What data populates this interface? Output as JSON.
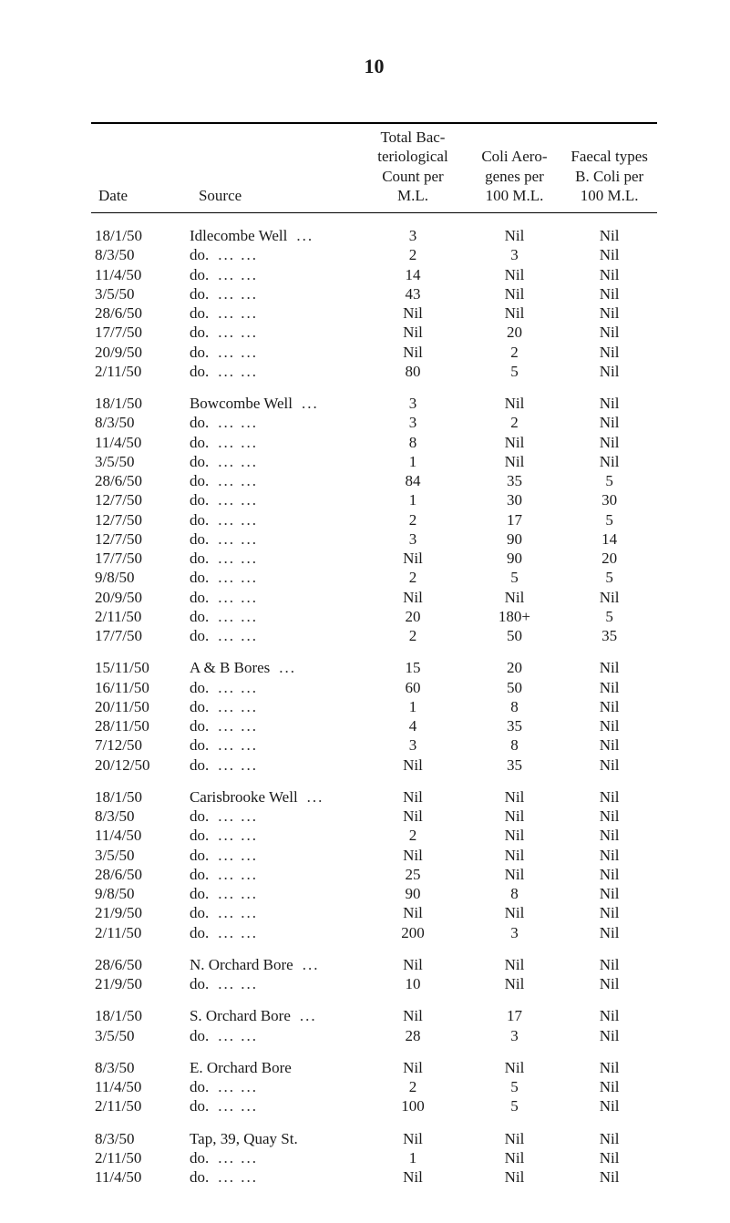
{
  "page_number": "10",
  "headers": {
    "date": "Date",
    "source": "Source",
    "total": "Total Bac-\nteriological\nCount per\nM.L.",
    "coli": "Coli Aero-\ngenes per\n100 M.L.",
    "faecal": "Faecal types\nB. Coli per\n100 M.L."
  },
  "groups": [
    {
      "rows": [
        {
          "date": "18/1/50",
          "source": "Idlecombe Well",
          "dots": 1,
          "total": "3",
          "coli": "Nil",
          "faecal": "Nil"
        },
        {
          "date": "8/3/50",
          "source": "do.",
          "dots": 2,
          "total": "2",
          "coli": "3",
          "faecal": "Nil"
        },
        {
          "date": "11/4/50",
          "source": "do.",
          "dots": 2,
          "total": "14",
          "coli": "Nil",
          "faecal": "Nil"
        },
        {
          "date": "3/5/50",
          "source": "do.",
          "dots": 2,
          "total": "43",
          "coli": "Nil",
          "faecal": "Nil"
        },
        {
          "date": "28/6/50",
          "source": "do.",
          "dots": 2,
          "total": "Nil",
          "coli": "Nil",
          "faecal": "Nil"
        },
        {
          "date": "17/7/50",
          "source": "do.",
          "dots": 2,
          "total": "Nil",
          "coli": "20",
          "faecal": "Nil"
        },
        {
          "date": "20/9/50",
          "source": "do.",
          "dots": 2,
          "total": "Nil",
          "coli": "2",
          "faecal": "Nil"
        },
        {
          "date": "2/11/50",
          "source": "do.",
          "dots": 2,
          "total": "80",
          "coli": "5",
          "faecal": "Nil"
        }
      ]
    },
    {
      "rows": [
        {
          "date": "18/1/50",
          "source": "Bowcombe Well",
          "dots": 1,
          "total": "3",
          "coli": "Nil",
          "faecal": "Nil"
        },
        {
          "date": "8/3/50",
          "source": "do.",
          "dots": 2,
          "total": "3",
          "coli": "2",
          "faecal": "Nil"
        },
        {
          "date": "11/4/50",
          "source": "do.",
          "dots": 2,
          "total": "8",
          "coli": "Nil",
          "faecal": "Nil"
        },
        {
          "date": "3/5/50",
          "source": "do.",
          "dots": 2,
          "total": "1",
          "coli": "Nil",
          "faecal": "Nil"
        },
        {
          "date": "28/6/50",
          "source": "do.",
          "dots": 2,
          "total": "84",
          "coli": "35",
          "faecal": "5"
        },
        {
          "date": "12/7/50",
          "source": "do.",
          "dots": 2,
          "total": "1",
          "coli": "30",
          "faecal": "30"
        },
        {
          "date": "12/7/50",
          "source": "do.",
          "dots": 2,
          "total": "2",
          "coli": "17",
          "faecal": "5"
        },
        {
          "date": "12/7/50",
          "source": "do.",
          "dots": 2,
          "total": "3",
          "coli": "90",
          "faecal": "14"
        },
        {
          "date": "17/7/50",
          "source": "do.",
          "dots": 2,
          "total": "Nil",
          "coli": "90",
          "faecal": "20"
        },
        {
          "date": "9/8/50",
          "source": "do.",
          "dots": 2,
          "total": "2",
          "coli": "5",
          "faecal": "5"
        },
        {
          "date": "20/9/50",
          "source": "do.",
          "dots": 2,
          "total": "Nil",
          "coli": "Nil",
          "faecal": "Nil"
        },
        {
          "date": "2/11/50",
          "source": "do.",
          "dots": 2,
          "total": "20",
          "coli": "180+",
          "faecal": "5"
        },
        {
          "date": "17/7/50",
          "source": "do.",
          "dots": 2,
          "total": "2",
          "coli": "50",
          "faecal": "35"
        }
      ]
    },
    {
      "rows": [
        {
          "date": "15/11/50",
          "source": "A & B Bores",
          "dots": 1,
          "total": "15",
          "coli": "20",
          "faecal": "Nil"
        },
        {
          "date": "16/11/50",
          "source": "do.",
          "dots": 2,
          "total": "60",
          "coli": "50",
          "faecal": "Nil"
        },
        {
          "date": "20/11/50",
          "source": "do.",
          "dots": 2,
          "total": "1",
          "coli": "8",
          "faecal": "Nil"
        },
        {
          "date": "28/11/50",
          "source": "do.",
          "dots": 2,
          "total": "4",
          "coli": "35",
          "faecal": "Nil"
        },
        {
          "date": "7/12/50",
          "source": "do.",
          "dots": 2,
          "total": "3",
          "coli": "8",
          "faecal": "Nil"
        },
        {
          "date": "20/12/50",
          "source": "do.",
          "dots": 2,
          "total": "Nil",
          "coli": "35",
          "faecal": "Nil"
        }
      ]
    },
    {
      "rows": [
        {
          "date": "18/1/50",
          "source": "Carisbrooke Well",
          "dots": 1,
          "total": "Nil",
          "coli": "Nil",
          "faecal": "Nil"
        },
        {
          "date": "8/3/50",
          "source": "do.",
          "dots": 2,
          "total": "Nil",
          "coli": "Nil",
          "faecal": "Nil"
        },
        {
          "date": "11/4/50",
          "source": "do.",
          "dots": 2,
          "total": "2",
          "coli": "Nil",
          "faecal": "Nil"
        },
        {
          "date": "3/5/50",
          "source": "do.",
          "dots": 2,
          "total": "Nil",
          "coli": "Nil",
          "faecal": "Nil"
        },
        {
          "date": "28/6/50",
          "source": "do.",
          "dots": 2,
          "total": "25",
          "coli": "Nil",
          "faecal": "Nil"
        },
        {
          "date": "9/8/50",
          "source": "do.",
          "dots": 2,
          "total": "90",
          "coli": "8",
          "faecal": "Nil"
        },
        {
          "date": "21/9/50",
          "source": "do.",
          "dots": 2,
          "total": "Nil",
          "coli": "Nil",
          "faecal": "Nil"
        },
        {
          "date": "2/11/50",
          "source": "do.",
          "dots": 2,
          "total": "200",
          "coli": "3",
          "faecal": "Nil"
        }
      ]
    },
    {
      "rows": [
        {
          "date": "28/6/50",
          "source": "N. Orchard Bore",
          "dots": 1,
          "total": "Nil",
          "coli": "Nil",
          "faecal": "Nil"
        },
        {
          "date": "21/9/50",
          "source": "do.",
          "dots": 2,
          "total": "10",
          "coli": "Nil",
          "faecal": "Nil"
        }
      ]
    },
    {
      "rows": [
        {
          "date": "18/1/50",
          "source": "S. Orchard Bore",
          "dots": 1,
          "total": "Nil",
          "coli": "17",
          "faecal": "Nil"
        },
        {
          "date": "3/5/50",
          "source": "do.",
          "dots": 2,
          "total": "28",
          "coli": "3",
          "faecal": "Nil"
        }
      ]
    },
    {
      "rows": [
        {
          "date": "8/3/50",
          "source": "E. Orchard Bore",
          "dots": 0,
          "total": "Nil",
          "coli": "Nil",
          "faecal": "Nil"
        },
        {
          "date": "11/4/50",
          "source": "do.",
          "dots": 2,
          "total": "2",
          "coli": "5",
          "faecal": "Nil"
        },
        {
          "date": "2/11/50",
          "source": "do.",
          "dots": 2,
          "total": "100",
          "coli": "5",
          "faecal": "Nil"
        }
      ]
    },
    {
      "rows": [
        {
          "date": "8/3/50",
          "source": "Tap, 39, Quay St.",
          "dots": 0,
          "total": "Nil",
          "coli": "Nil",
          "faecal": "Nil"
        },
        {
          "date": "2/11/50",
          "source": "do.",
          "dots": 2,
          "total": "1",
          "coli": "Nil",
          "faecal": "Nil"
        },
        {
          "date": "11/4/50",
          "source": "do.",
          "dots": 2,
          "total": "Nil",
          "coli": "Nil",
          "faecal": "Nil"
        }
      ]
    }
  ]
}
